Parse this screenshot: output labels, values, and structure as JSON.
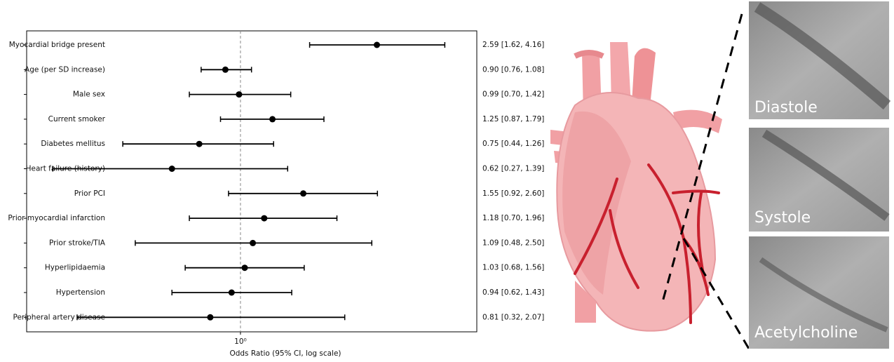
{
  "chart_data": {
    "type": "forest",
    "categories": [
      "Myocardial bridge present",
      "Age (per SD increase)",
      "Male sex",
      "Current smoker",
      "Diabetes mellitus",
      "Heart failure (history)",
      "Prior PCI",
      "Prior myocardial infarction",
      "Prior stroke/TIA",
      "Hyperlipidaemia",
      "Hypertension",
      "Peripheral artery disease"
    ],
    "values": [
      2.59,
      0.9,
      0.99,
      1.25,
      0.75,
      0.62,
      1.55,
      1.18,
      1.09,
      1.03,
      0.94,
      0.81
    ],
    "lower": [
      1.62,
      0.76,
      0.7,
      0.87,
      0.44,
      0.27,
      0.92,
      0.7,
      0.48,
      0.68,
      0.62,
      0.32
    ],
    "upper": [
      4.16,
      1.08,
      1.42,
      1.79,
      1.26,
      1.39,
      2.6,
      1.96,
      2.5,
      1.56,
      1.43,
      2.07
    ],
    "value_labels": [
      "2.59 [1.62, 4.16]",
      "0.90 [0.76, 1.08]",
      "0.99 [0.70, 1.42]",
      "1.25 [0.87, 1.79]",
      "0.75 [0.44, 1.26]",
      "0.62 [0.27, 1.39]",
      "1.55 [0.92, 2.60]",
      "1.18 [0.70, 1.96]",
      "1.09 [0.48, 2.50]",
      "1.03 [0.68, 1.56]",
      "0.94 [0.62, 1.43]",
      "0.81 [0.32, 2.07]"
    ],
    "xlabel": "Odds Ratio (95% CI, log scale)",
    "xlim": [
      0.225,
      5.2
    ],
    "xticks": [
      {
        "value": 1,
        "label": "10⁰"
      }
    ],
    "log_scale": true,
    "reference_line": 1,
    "color": "#000000"
  },
  "panels": [
    {
      "label": "Diastole"
    },
    {
      "label": "Systole"
    },
    {
      "label": "Acetylcholine"
    }
  ]
}
